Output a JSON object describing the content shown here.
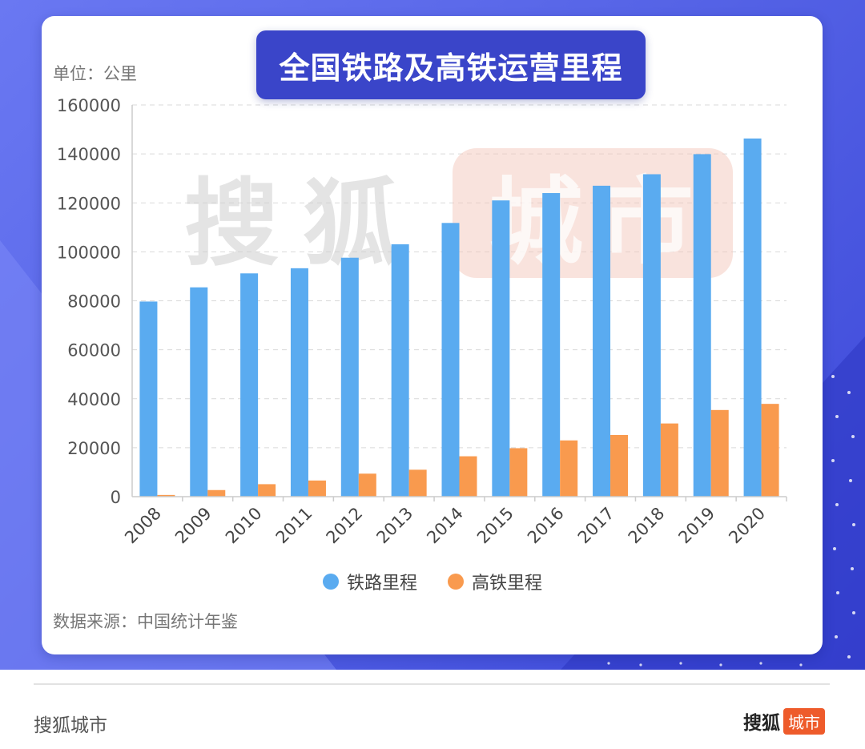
{
  "title": "全国铁路及高铁运营里程",
  "unit_label": "单位：公里",
  "source_label": "数据来源：中国统计年鉴",
  "watermark": {
    "brand": "搜狐",
    "city": "城市"
  },
  "footer": {
    "brand": "搜狐城市",
    "logo_main": "搜狐",
    "logo_city": "城市"
  },
  "colors": {
    "railway": "#5aabf0",
    "highspeed": "#f99a4e",
    "title_bg": "#3a45c9",
    "logo_accent": "#ee5b2b"
  },
  "chart_data": {
    "type": "bar",
    "title": "全国铁路及高铁运营里程",
    "ylabel": "单位：公里",
    "xlabel": "",
    "categories": [
      "2008",
      "2009",
      "2010",
      "2011",
      "2012",
      "2013",
      "2014",
      "2015",
      "2016",
      "2017",
      "2018",
      "2019",
      "2020"
    ],
    "series": [
      {
        "name": "铁路里程",
        "values": [
          79700,
          85500,
          91200,
          93300,
          97600,
          103100,
          111800,
          121000,
          124000,
          127000,
          131700,
          139900,
          146300
        ]
      },
      {
        "name": "高铁里程",
        "values": [
          700,
          2700,
          5100,
          6600,
          9400,
          11000,
          16500,
          19800,
          22980,
          25200,
          29900,
          35400,
          37900
        ]
      }
    ],
    "ylim": [
      0,
      160000
    ],
    "yticks": [
      0,
      20000,
      40000,
      60000,
      80000,
      100000,
      120000,
      140000,
      160000
    ],
    "grid": true,
    "legend_position": "bottom-center"
  }
}
